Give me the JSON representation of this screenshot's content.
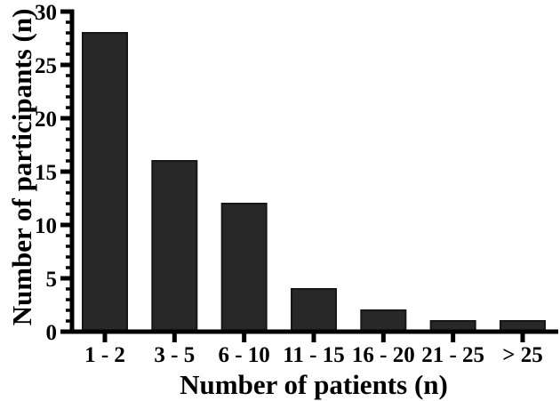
{
  "figure": {
    "background": "#ffffff"
  },
  "chart_data": {
    "type": "bar",
    "xlabel": "Number of patients (n)",
    "ylabel": "Number of participants (n)",
    "categories": [
      "1 - 2",
      "3 - 5",
      "6 - 10",
      "11 - 15",
      "16 - 20",
      "21 - 25",
      "> 25"
    ],
    "values": [
      28,
      16,
      12,
      4,
      2,
      1,
      1
    ],
    "ylim": [
      0,
      30
    ],
    "ytick_step": 5,
    "ytick_minor_step": 1,
    "ytick_labels": [
      "0",
      "5",
      "10",
      "15",
      "20",
      "25",
      "30"
    ],
    "grid": false,
    "bar_color": "#282828",
    "bar_border_color": "#161616",
    "axis_color": "#000000"
  }
}
